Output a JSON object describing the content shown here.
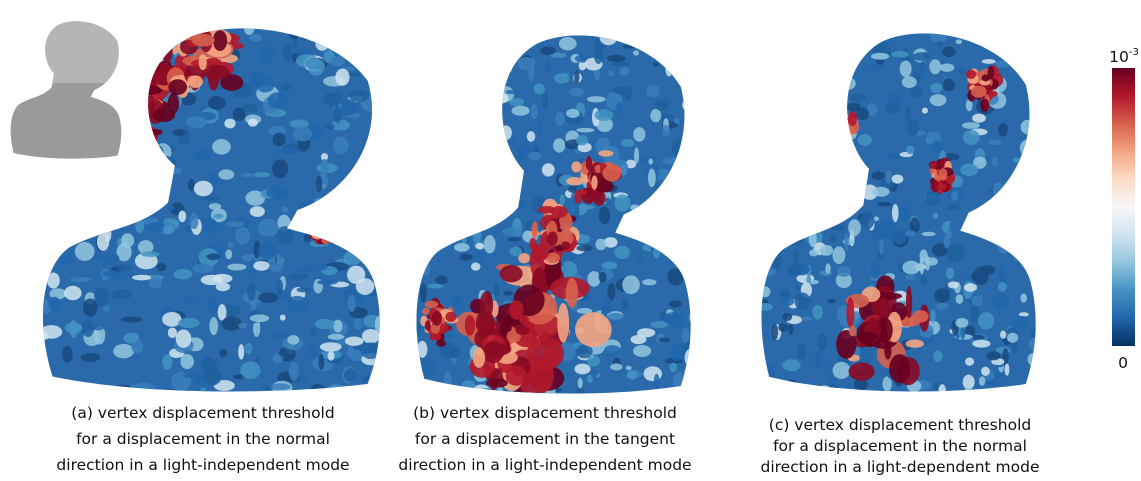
{
  "colorbar": {
    "top_label": {
      "base": "10",
      "exponent": "-3"
    },
    "bottom_label": "0"
  },
  "captions": [
    [
      "(a) vertex displacement threshold",
      "for a displacement in the normal",
      "direction in a light-independent mode"
    ],
    [
      "(b) vertex displacement threshold",
      "for a displacement in the tangent",
      "direction in a light-independent mode"
    ],
    [
      "(c) vertex displacement threshold",
      "for a displacement in the normal",
      "direction in a light-dependent mode"
    ]
  ]
}
